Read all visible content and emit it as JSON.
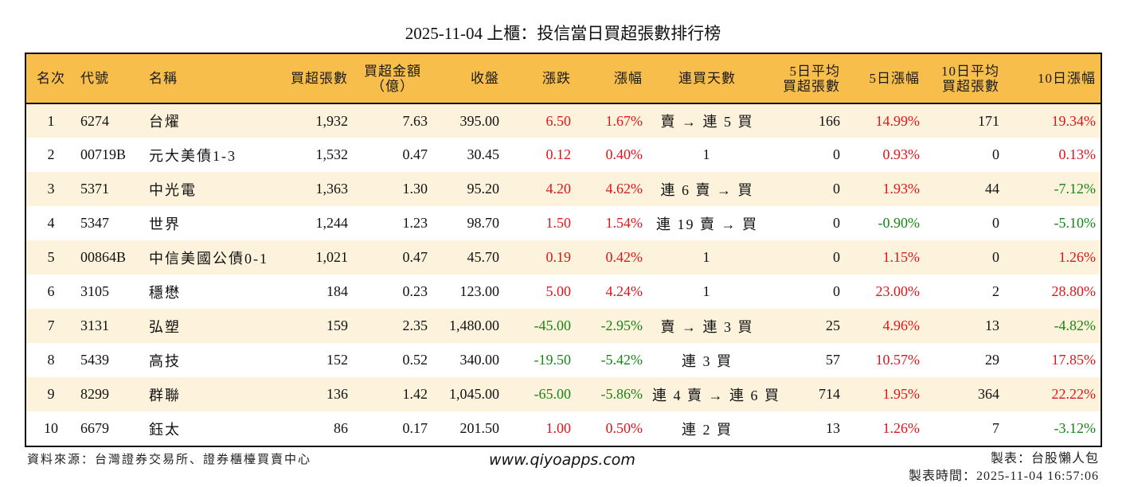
{
  "title": "2025-11-04 上櫃：投信當日買超張數排行榜",
  "columns": {
    "rank": "名次",
    "code": "代號",
    "name": "名稱",
    "net_buy_lots": "買超張數",
    "net_buy_amount_line1": "買超金額",
    "net_buy_amount_line2": "（億）",
    "close": "收盤",
    "change": "漲跌",
    "change_pct": "漲幅",
    "streak": "連買天數",
    "avg5_line1": "5日平均",
    "avg5_line2": "買超張數",
    "pct5": "5日漲幅",
    "avg10_line1": "10日平均",
    "avg10_line2": "買超張數",
    "pct10": "10日漲幅"
  },
  "colors": {
    "header_bg": "#f7be4c",
    "row_alt_bg": "#fdf3dd",
    "up": "#e0151b",
    "down": "#168516"
  },
  "rows": [
    {
      "rank": "1",
      "code": "6274",
      "name": "台燿",
      "lots": "1,932",
      "amount": "7.63",
      "close": "395.00",
      "change": "6.50",
      "change_pct": "1.67%",
      "streak": "賣 → 連 5 買",
      "avg5": "166",
      "pct5": "14.99%",
      "avg10": "171",
      "pct10": "19.34%"
    },
    {
      "rank": "2",
      "code": "00719B",
      "name": "元大美債1-3",
      "lots": "1,532",
      "amount": "0.47",
      "close": "30.45",
      "change": "0.12",
      "change_pct": "0.40%",
      "streak": "1",
      "avg5": "0",
      "pct5": "0.93%",
      "avg10": "0",
      "pct10": "0.13%"
    },
    {
      "rank": "3",
      "code": "5371",
      "name": "中光電",
      "lots": "1,363",
      "amount": "1.30",
      "close": "95.20",
      "change": "4.20",
      "change_pct": "4.62%",
      "streak": "連 6 賣 → 買",
      "avg5": "0",
      "pct5": "1.93%",
      "avg10": "44",
      "pct10": "-7.12%"
    },
    {
      "rank": "4",
      "code": "5347",
      "name": "世界",
      "lots": "1,244",
      "amount": "1.23",
      "close": "98.70",
      "change": "1.50",
      "change_pct": "1.54%",
      "streak": "連 19 賣 → 買",
      "avg5": "0",
      "pct5": "-0.90%",
      "avg10": "0",
      "pct10": "-5.10%"
    },
    {
      "rank": "5",
      "code": "00864B",
      "name": "中信美國公債0-1",
      "lots": "1,021",
      "amount": "0.47",
      "close": "45.70",
      "change": "0.19",
      "change_pct": "0.42%",
      "streak": "1",
      "avg5": "0",
      "pct5": "1.15%",
      "avg10": "0",
      "pct10": "1.26%"
    },
    {
      "rank": "6",
      "code": "3105",
      "name": "穩懋",
      "lots": "184",
      "amount": "0.23",
      "close": "123.00",
      "change": "5.00",
      "change_pct": "4.24%",
      "streak": "1",
      "avg5": "0",
      "pct5": "23.00%",
      "avg10": "2",
      "pct10": "28.80%"
    },
    {
      "rank": "7",
      "code": "3131",
      "name": "弘塑",
      "lots": "159",
      "amount": "2.35",
      "close": "1,480.00",
      "change": "-45.00",
      "change_pct": "-2.95%",
      "streak": "賣 → 連 3 買",
      "avg5": "25",
      "pct5": "4.96%",
      "avg10": "13",
      "pct10": "-4.82%"
    },
    {
      "rank": "8",
      "code": "5439",
      "name": "高技",
      "lots": "152",
      "amount": "0.52",
      "close": "340.00",
      "change": "-19.50",
      "change_pct": "-5.42%",
      "streak": "連 3 買",
      "avg5": "57",
      "pct5": "10.57%",
      "avg10": "29",
      "pct10": "17.85%"
    },
    {
      "rank": "9",
      "code": "8299",
      "name": "群聯",
      "lots": "136",
      "amount": "1.42",
      "close": "1,045.00",
      "change": "-65.00",
      "change_pct": "-5.86%",
      "streak": "連 4 賣 → 連 6 買",
      "avg5": "714",
      "pct5": "1.95%",
      "avg10": "364",
      "pct10": "22.22%"
    },
    {
      "rank": "10",
      "code": "6679",
      "name": "鈺太",
      "lots": "86",
      "amount": "0.17",
      "close": "201.50",
      "change": "1.00",
      "change_pct": "0.50%",
      "streak": "連 2 買",
      "avg5": "13",
      "pct5": "1.26%",
      "avg10": "7",
      "pct10": "-3.12%"
    }
  ],
  "footer": {
    "source": "資料來源：台灣證券交易所、證券櫃檯買賣中心",
    "website": "www.qiyoapps.com",
    "author": "製表：台股懶人包",
    "generated_at": "製表時間：2025-11-04 16:57:06"
  }
}
